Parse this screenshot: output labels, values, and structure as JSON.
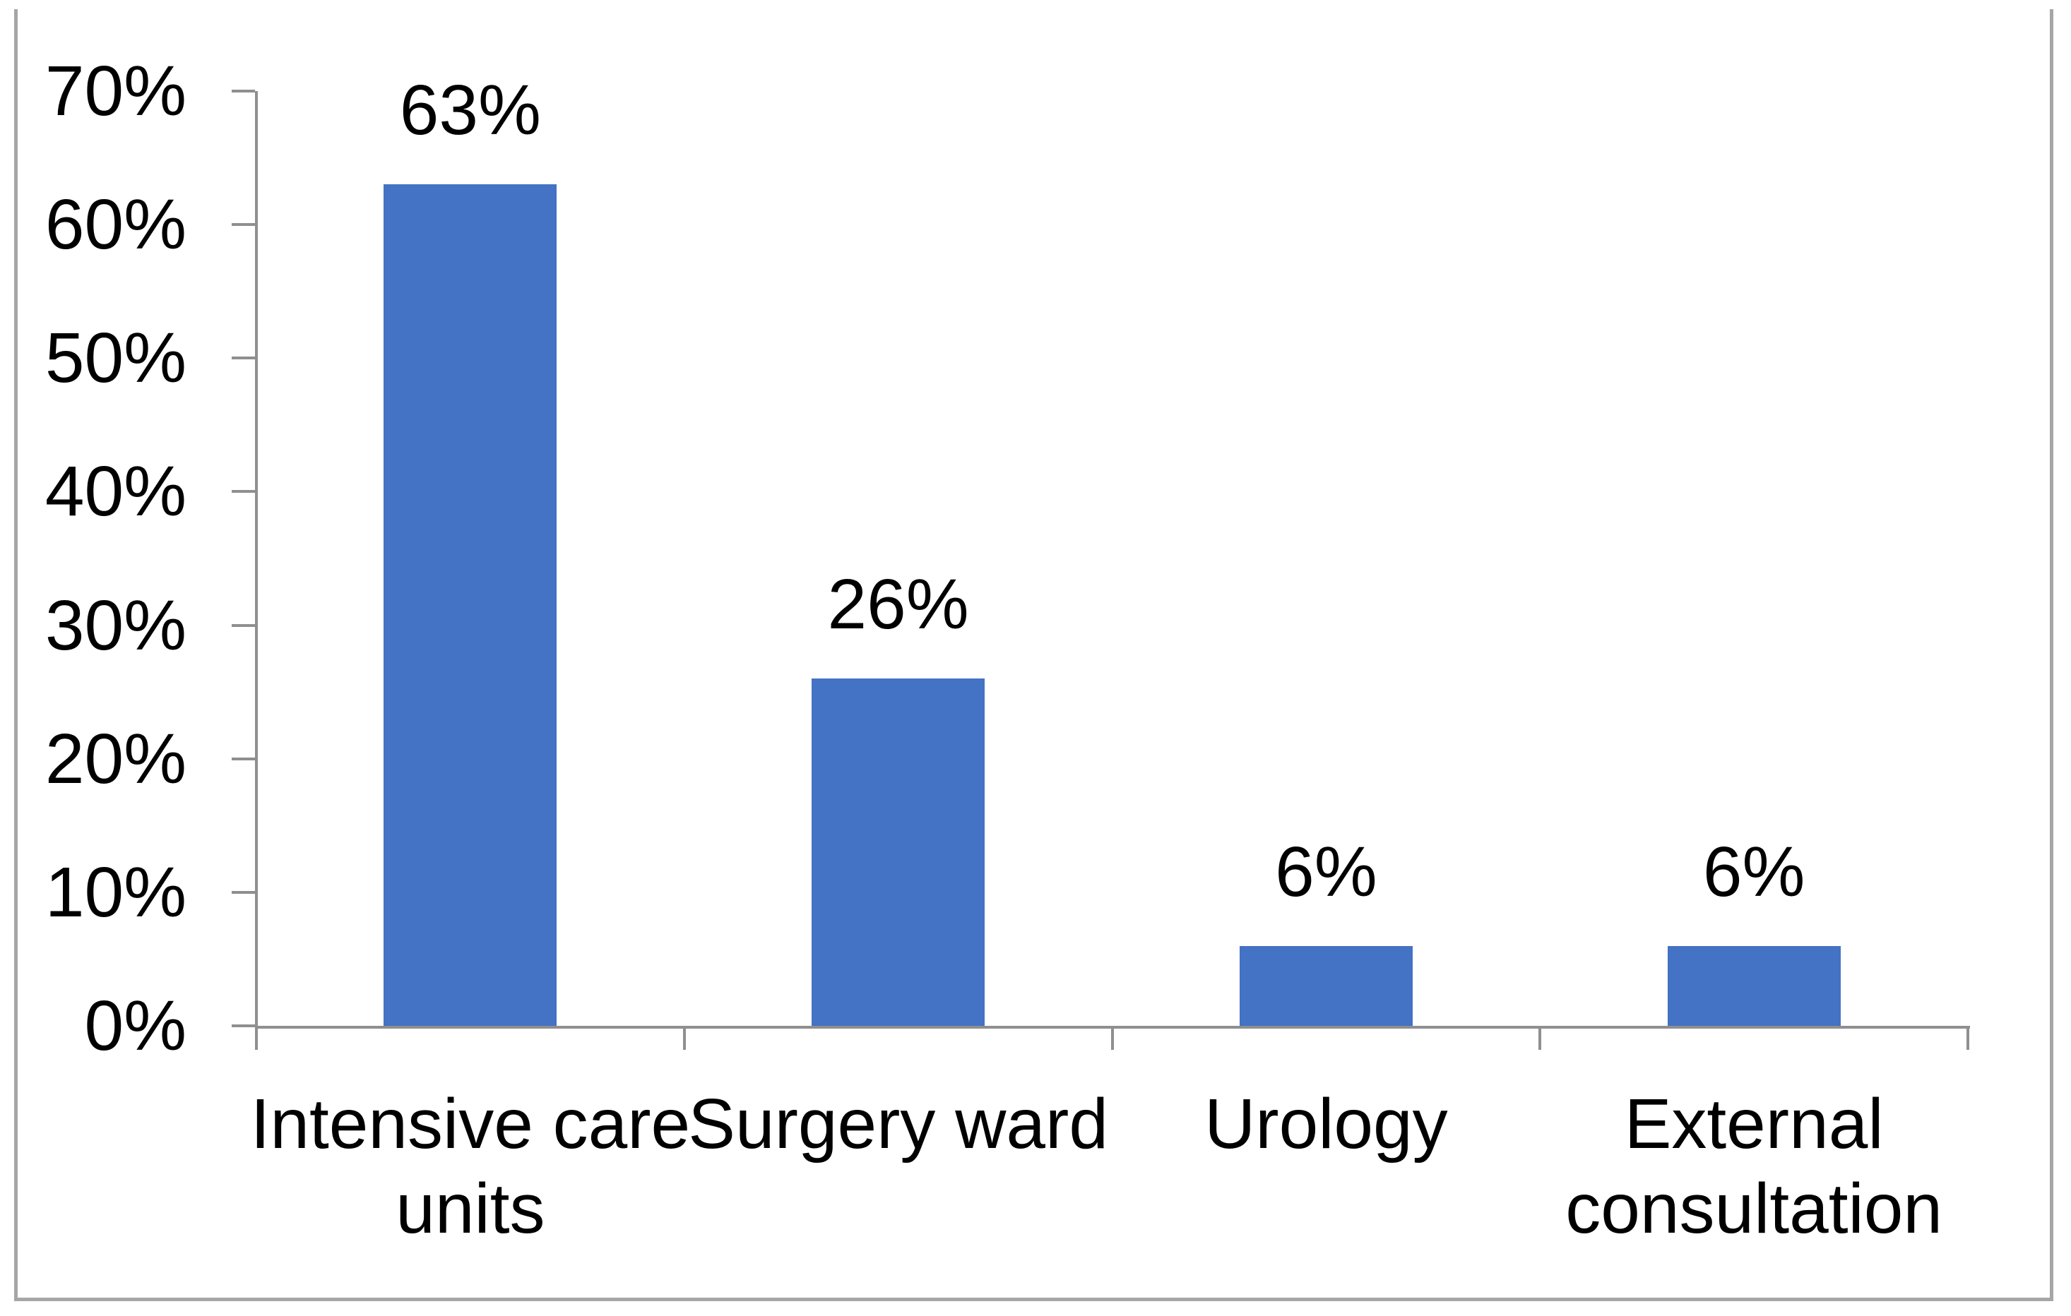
{
  "chart_data": {
    "type": "bar",
    "title": "",
    "categories": [
      "Intensive care units",
      "Surgery ward",
      "Urology",
      "External consultation"
    ],
    "category_lines": [
      [
        "Intensive care",
        "units"
      ],
      [
        "Surgery ward"
      ],
      [
        "Urology"
      ],
      [
        "External",
        "consultation"
      ]
    ],
    "values": [
      63,
      26,
      6,
      6
    ],
    "data_labels": [
      "63%",
      "26%",
      "6%",
      "6%"
    ],
    "y_tick_labels": [
      "0%",
      "10%",
      "20%",
      "30%",
      "40%",
      "50%",
      "60%",
      "70%"
    ],
    "ylim": [
      0,
      70
    ],
    "y_tick_step": 10,
    "xlabel": "",
    "ylabel": "",
    "grid": "off",
    "legend": "none",
    "bar_color": "#4472C4",
    "axis_color": "#8F8F8F",
    "frame_color": "#A6A6A6",
    "text_color": "#000000"
  }
}
